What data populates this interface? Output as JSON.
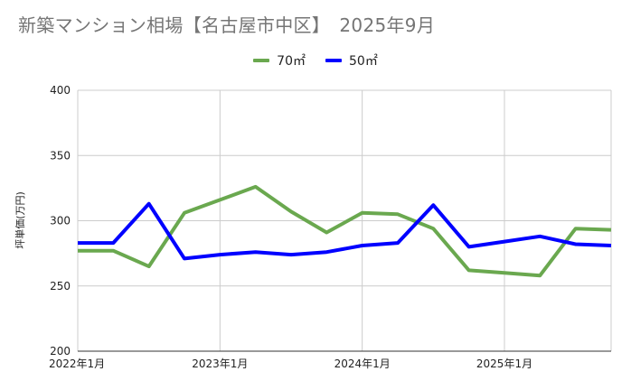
{
  "chart_data": {
    "type": "line",
    "title": "新築マンション相場【名古屋市中区】　2025年9月",
    "ylabel": "坪単価(万円)",
    "xlabel": "",
    "ylim": [
      200,
      400
    ],
    "yticks": [
      200,
      250,
      300,
      350,
      400
    ],
    "xtick_labels": [
      "2022年1月",
      "2023年1月",
      "2024年1月",
      "2025年1月"
    ],
    "legend_position": "top-center",
    "grid": true,
    "series": [
      {
        "name": "70㎡",
        "color": "#6aa84f",
        "values": [
          277,
          277,
          265,
          306,
          316,
          326,
          307,
          291,
          306,
          305,
          294,
          262,
          260,
          258,
          294,
          293
        ]
      },
      {
        "name": "50㎡",
        "color": "#0000ff",
        "values": [
          283,
          283,
          313,
          271,
          274,
          276,
          274,
          276,
          281,
          283,
          312,
          280,
          284,
          288,
          282,
          281
        ]
      }
    ]
  }
}
